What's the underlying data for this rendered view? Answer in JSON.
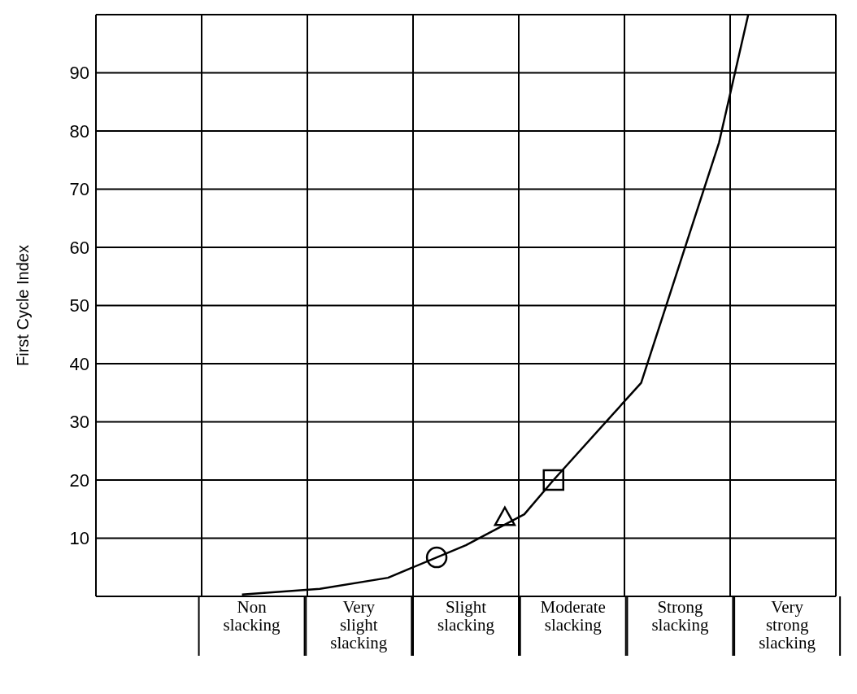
{
  "chart_data": {
    "type": "line",
    "ylabel": "First Cycle Index",
    "ylim": [
      0,
      100
    ],
    "categories": [
      null,
      null,
      null,
      null,
      null,
      null,
      null,
      null,
      null,
      null,
      null,
      null,
      null,
      null,
      null,
      null,
      "Non slacking",
      null,
      null,
      null,
      null,
      null,
      null,
      null,
      null,
      null,
      null,
      "Very slight slacking",
      null,
      null,
      null,
      null,
      null,
      null,
      null,
      null,
      null,
      null,
      "Slight slacking",
      null,
      null,
      null,
      null,
      null,
      null,
      null,
      null,
      null,
      null,
      "Moderate slacking",
      null,
      null,
      null,
      null,
      null,
      null,
      null,
      null,
      null,
      null,
      "Strong slacking",
      null,
      null,
      null,
      null,
      null,
      null,
      null,
      null,
      null,
      null,
      "Very strong slacking",
      null,
      null,
      null,
      null,
      null
    ],
    "yticks": [
      10,
      20,
      30,
      40,
      50,
      60,
      70,
      80,
      90
    ],
    "grid": true,
    "series": [
      {
        "color": "#000000",
        "marker": "none",
        "line_style": "solid",
        "values": [
          null,
          null,
          null,
          null,
          null,
          null,
          null,
          null,
          null,
          null,
          null,
          null,
          null,
          null,
          null,
          0.3,
          null,
          null,
          null,
          null,
          null,
          null,
          null,
          1.3,
          null,
          null,
          null,
          null,
          null,
          null,
          3.2,
          null,
          null,
          null,
          null,
          6.7,
          null,
          null,
          8.8,
          null,
          null,
          null,
          null,
          null,
          14.1,
          null,
          null,
          20,
          null,
          null,
          null,
          null,
          null,
          null,
          null,
          null,
          36.7,
          null,
          null,
          null,
          null,
          null,
          null,
          null,
          78,
          null,
          null,
          100,
          null,
          null,
          null,
          null,
          null,
          null,
          null,
          null,
          null
        ]
      },
      {
        "type": "scatter",
        "color": "#000000",
        "marker": "circle",
        "values": [
          null,
          null,
          null,
          null,
          null,
          null,
          null,
          null,
          null,
          null,
          null,
          null,
          null,
          null,
          null,
          null,
          null,
          null,
          null,
          null,
          null,
          null,
          null,
          null,
          null,
          null,
          null,
          null,
          null,
          null,
          null,
          null,
          null,
          null,
          null,
          6.7,
          null,
          null,
          null,
          null,
          null,
          null,
          null,
          null,
          null,
          null,
          null,
          null,
          null,
          null,
          null,
          null,
          null,
          null,
          null,
          null,
          null,
          null,
          null,
          null,
          null,
          null,
          null,
          null,
          null,
          null,
          null,
          null,
          null,
          null,
          null,
          null,
          null,
          null,
          null,
          null,
          null
        ]
      },
      {
        "type": "scatter",
        "color": "#000000",
        "marker": "triangle",
        "values": [
          null,
          null,
          null,
          null,
          null,
          null,
          null,
          null,
          null,
          null,
          null,
          null,
          null,
          null,
          null,
          null,
          null,
          null,
          null,
          null,
          null,
          null,
          null,
          null,
          null,
          null,
          null,
          null,
          null,
          null,
          null,
          null,
          null,
          null,
          null,
          null,
          null,
          null,
          null,
          null,
          null,
          null,
          13.6,
          null,
          null,
          null,
          null,
          null,
          null,
          null,
          null,
          null,
          null,
          null,
          null,
          null,
          null,
          null,
          null,
          null,
          null,
          null,
          null,
          null,
          null,
          null,
          null,
          null,
          null,
          null,
          null,
          null,
          null,
          null,
          null,
          null,
          null
        ]
      },
      {
        "type": "scatter",
        "color": "#000000",
        "marker": "square",
        "values": [
          null,
          null,
          null,
          null,
          null,
          null,
          null,
          null,
          null,
          null,
          null,
          null,
          null,
          null,
          null,
          null,
          null,
          null,
          null,
          null,
          null,
          null,
          null,
          null,
          null,
          null,
          null,
          null,
          null,
          null,
          null,
          null,
          null,
          null,
          null,
          null,
          null,
          null,
          null,
          null,
          null,
          null,
          null,
          null,
          null,
          null,
          null,
          20,
          null,
          null,
          null,
          null,
          null,
          null,
          null,
          null,
          null,
          null,
          null,
          null,
          null,
          null,
          null,
          null,
          null,
          null,
          null,
          null,
          null,
          null,
          null,
          null,
          null,
          null,
          null,
          null,
          null
        ]
      }
    ]
  }
}
